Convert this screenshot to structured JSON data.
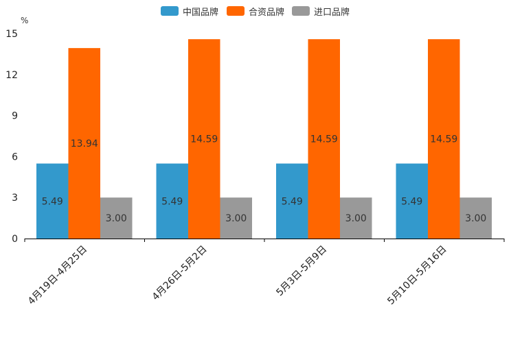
{
  "chart_data": {
    "type": "bar",
    "y_unit": "%",
    "ylim": [
      0,
      15
    ],
    "yticks": [
      0,
      3,
      6,
      9,
      12,
      15
    ],
    "categories": [
      "4月19日-4月25日",
      "4月26日-5月2日",
      "5月3日-5月9日",
      "5月10日-5月16日"
    ],
    "series": [
      {
        "name": "中国品牌",
        "color": "#3399cc",
        "values": [
          5.49,
          5.49,
          5.49,
          5.49
        ],
        "labels": [
          "5.49",
          "5.49",
          "5.49",
          "5.49"
        ]
      },
      {
        "name": "合资品牌",
        "color": "#ff6600",
        "values": [
          13.94,
          14.59,
          14.59,
          14.59
        ],
        "labels": [
          "13.94",
          "14.59",
          "14.59",
          "14.59"
        ]
      },
      {
        "name": "进口品牌",
        "color": "#999999",
        "values": [
          3.0,
          3.0,
          3.0,
          3.0
        ],
        "labels": [
          "3.00",
          "3.00",
          "3.00",
          "3.00"
        ]
      }
    ],
    "legend_position": "top-center",
    "grid": false
  }
}
